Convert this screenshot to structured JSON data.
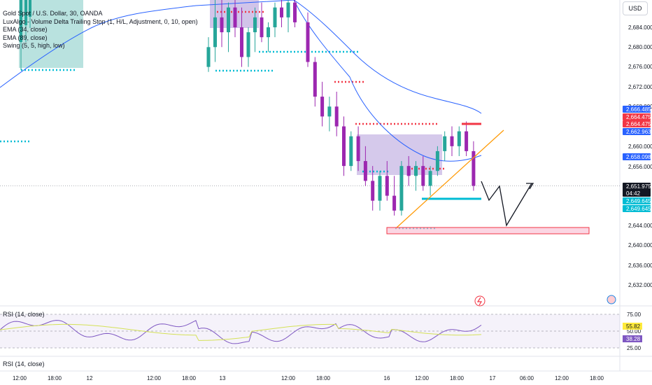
{
  "legend": {
    "symbol": "Gold Spot / U.S. Dollar, 30, OANDA",
    "indicators": [
      "LuxAlgo - Volume Delta Trailing Stop (1, H/L, Adjustment, 0, 10, open)",
      "EMA (34, close)",
      "EMA (89, close)",
      "Swing (5, 5, high, low)"
    ]
  },
  "currency": "USD",
  "price_axis": {
    "ticks": [
      "2,684.000",
      "2,680.000",
      "2,676.000",
      "2,672.000",
      "2,668.000",
      "2,660.000",
      "2,656.000",
      "2,644.000",
      "2,640.000",
      "2,636.000",
      "2,632.000"
    ],
    "range": [
      2628,
      2690
    ]
  },
  "price_tags": [
    {
      "label": "2,666.485",
      "color": "#2962ff"
    },
    {
      "label": "2,664.475",
      "color": "#f23645"
    },
    {
      "label": "2,664.475",
      "color": "#f23645"
    },
    {
      "label": "2,662.963",
      "color": "#2962ff"
    },
    {
      "label": "2,658.098",
      "color": "#2962ff"
    },
    {
      "label": "2,651.975",
      "sub": "04:42",
      "color": "#131722"
    },
    {
      "label": "2,649.645",
      "color": "#00bcd4"
    },
    {
      "label": "2,649.645",
      "color": "#00bcd4"
    }
  ],
  "time_axis": {
    "labels": [
      "12:00",
      "18:00",
      "12",
      "12:00",
      "18:00",
      "13",
      "12:00",
      "18:00",
      "16",
      "12:00",
      "18:00",
      "17",
      "06:00",
      "12:00",
      "18:00"
    ]
  },
  "rsi": {
    "title": "RSI (14, close)",
    "title2": "RSI (14, close)",
    "levels": [
      "75.00",
      "50.00",
      "25.00"
    ],
    "tags": [
      {
        "label": "55.82",
        "color": "#ffeb3b",
        "text": "#131722"
      },
      {
        "label": "38.28",
        "color": "#7e57c2",
        "text": "#ffffff"
      }
    ]
  },
  "chart_data": {
    "type": "candlestick",
    "instrument": "Gold Spot / U.S. Dollar",
    "interval": "30",
    "ylim": [
      2628,
      2690
    ],
    "last_price": 2651.975,
    "bars_approx": [
      {
        "o": 2676,
        "h": 2682,
        "l": 2675,
        "c": 2680
      },
      {
        "o": 2680,
        "h": 2690,
        "l": 2677,
        "c": 2686
      },
      {
        "o": 2686,
        "h": 2690,
        "l": 2680,
        "c": 2683
      },
      {
        "o": 2683,
        "h": 2689,
        "l": 2679,
        "c": 2688
      },
      {
        "o": 2688,
        "h": 2690,
        "l": 2682,
        "c": 2684
      },
      {
        "o": 2684,
        "h": 2688,
        "l": 2676,
        "c": 2678
      },
      {
        "o": 2678,
        "h": 2684,
        "l": 2676,
        "c": 2683
      },
      {
        "o": 2683,
        "h": 2688,
        "l": 2679,
        "c": 2686
      },
      {
        "o": 2686,
        "h": 2689,
        "l": 2681,
        "c": 2682
      },
      {
        "o": 2682,
        "h": 2685,
        "l": 2679,
        "c": 2684
      },
      {
        "o": 2684,
        "h": 2689,
        "l": 2682,
        "c": 2688
      },
      {
        "o": 2688,
        "h": 2690,
        "l": 2684,
        "c": 2686
      },
      {
        "o": 2686,
        "h": 2690,
        "l": 2683,
        "c": 2689
      },
      {
        "o": 2689,
        "h": 2690,
        "l": 2684,
        "c": 2685
      },
      {
        "o": 2685,
        "h": 2687,
        "l": 2676,
        "c": 2677
      },
      {
        "o": 2677,
        "h": 2678,
        "l": 2668,
        "c": 2670
      },
      {
        "o": 2670,
        "h": 2673,
        "l": 2664,
        "c": 2666
      },
      {
        "o": 2666,
        "h": 2670,
        "l": 2663,
        "c": 2668
      },
      {
        "o": 2668,
        "h": 2671,
        "l": 2662,
        "c": 2664
      },
      {
        "o": 2664,
        "h": 2666,
        "l": 2654,
        "c": 2656
      },
      {
        "o": 2656,
        "h": 2663,
        "l": 2655,
        "c": 2662
      },
      {
        "o": 2662,
        "h": 2664,
        "l": 2655,
        "c": 2657
      },
      {
        "o": 2657,
        "h": 2660,
        "l": 2652,
        "c": 2653
      },
      {
        "o": 2653,
        "h": 2656,
        "l": 2647,
        "c": 2649
      },
      {
        "o": 2649,
        "h": 2655,
        "l": 2647,
        "c": 2654
      },
      {
        "o": 2654,
        "h": 2657,
        "l": 2649,
        "c": 2650
      },
      {
        "o": 2650,
        "h": 2654,
        "l": 2646,
        "c": 2647
      },
      {
        "o": 2647,
        "h": 2657,
        "l": 2646,
        "c": 2656
      },
      {
        "o": 2656,
        "h": 2658,
        "l": 2652,
        "c": 2654
      },
      {
        "o": 2654,
        "h": 2657,
        "l": 2651,
        "c": 2656
      },
      {
        "o": 2656,
        "h": 2658,
        "l": 2651,
        "c": 2652
      },
      {
        "o": 2652,
        "h": 2656,
        "l": 2650,
        "c": 2655
      },
      {
        "o": 2655,
        "h": 2660,
        "l": 2654,
        "c": 2659
      },
      {
        "o": 2659,
        "h": 2663,
        "l": 2657,
        "c": 2662
      },
      {
        "o": 2662,
        "h": 2664,
        "l": 2658,
        "c": 2660
      },
      {
        "o": 2660,
        "h": 2664,
        "l": 2658,
        "c": 2663
      },
      {
        "o": 2663,
        "h": 2665,
        "l": 2658,
        "c": 2659
      },
      {
        "o": 2659,
        "h": 2661,
        "l": 2651,
        "c": 2652
      }
    ],
    "ema_34_approx": [
      2680,
      2681,
      2681,
      2682,
      2682,
      2682,
      2681,
      2681,
      2681,
      2681,
      2681,
      2681,
      2682,
      2682,
      2681,
      2679,
      2677,
      2675,
      2673,
      2671,
      2669,
      2667,
      2665,
      2663,
      2661,
      2660,
      2659,
      2658,
      2658,
      2658,
      2658,
      2658,
      2658,
      2658,
      2659,
      2659,
      2659,
      2658
    ],
    "ema_89_approx": [
      2676,
      2677,
      2678,
      2679,
      2680,
      2681,
      2682,
      2683,
      2684,
      2685,
      2686,
      2686,
      2687,
      2687,
      2687,
      2686,
      2684,
      2682,
      2680,
      2678,
      2676,
      2674,
      2673,
      2672,
      2671,
      2670,
      2669,
      2668,
      2668,
      2667,
      2667,
      2667,
      2667,
      2666,
      2666,
      2666,
      2666,
      2666
    ],
    "levels": {
      "support_zone": [
        2642.8,
        2644.2
      ],
      "support_line": 2649.645,
      "resistance_line": 2664.475
    }
  }
}
